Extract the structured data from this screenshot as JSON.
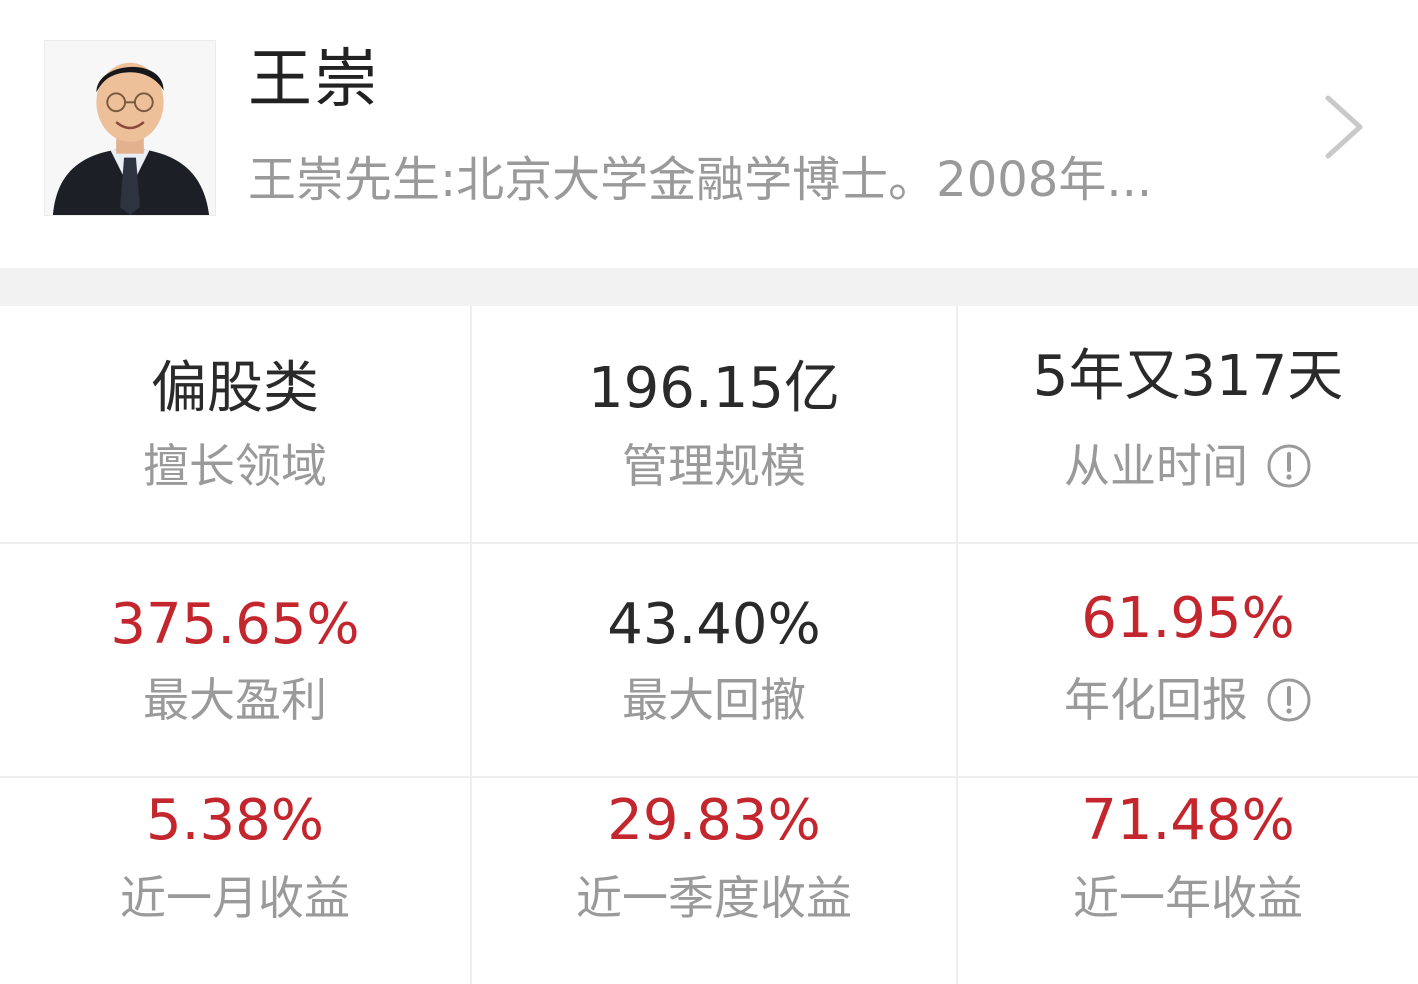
{
  "profile": {
    "name": "王崇",
    "intro": "王崇先生:北京大学金融学博士。2008年..."
  },
  "stats": {
    "specialty": {
      "value": "偏股类",
      "label": "擅长领域"
    },
    "aum": {
      "value": "196.15亿",
      "label": "管理规模"
    },
    "tenure": {
      "value": "5年又317天",
      "label": "从业时间"
    },
    "max_profit": {
      "value": "375.65%",
      "label": "最大盈利"
    },
    "max_drawdown": {
      "value": "43.40%",
      "label": "最大回撤"
    },
    "annualized": {
      "value": "61.95%",
      "label": "年化回报"
    },
    "return_1m": {
      "value": "5.38%",
      "label": "近一月收益"
    },
    "return_3m": {
      "value": "29.83%",
      "label": "近一季度收益"
    },
    "return_1y": {
      "value": "71.48%",
      "label": "近一年收益"
    }
  },
  "icons": {
    "info": "info-circle-icon",
    "chevron": "chevron-right-icon"
  },
  "colors": {
    "positive": "#c4262e",
    "text": "#2a2a2a",
    "muted": "#9a9a9a",
    "band": "#f2f2f2"
  }
}
